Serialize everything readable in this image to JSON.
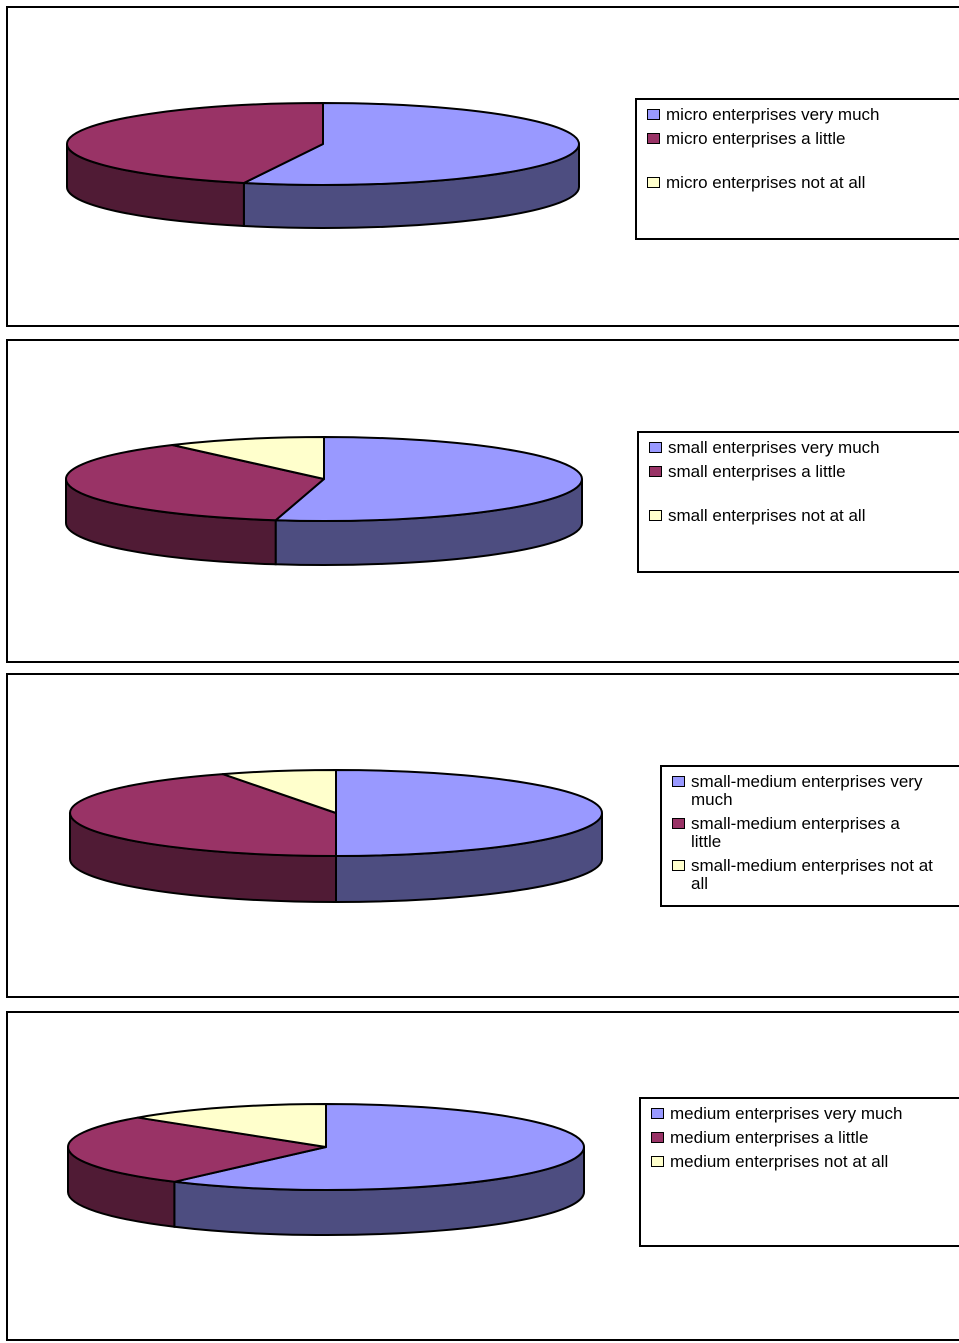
{
  "colors": {
    "very_much": "#9999ff",
    "a_little": "#993366",
    "not_at_all": "#ffffcc"
  },
  "chart_data": [
    {
      "type": "pie",
      "series": [
        {
          "name": "micro enterprises very much",
          "value": 55
        },
        {
          "name": "micro enterprises  a little",
          "value": 45
        },
        {
          "name": "micro enterprises not at all",
          "value": 0
        }
      ],
      "legend_position": "right"
    },
    {
      "type": "pie",
      "series": [
        {
          "name": "small enterprises very much",
          "value": 53
        },
        {
          "name": "small enterprises  a little",
          "value": 37
        },
        {
          "name": "small enterprises not at all",
          "value": 10
        }
      ],
      "legend_position": "right"
    },
    {
      "type": "pie",
      "series": [
        {
          "name": "small-medium enterprises very much",
          "value": 50
        },
        {
          "name": "small-medium enterprises  a little",
          "value": 43
        },
        {
          "name": "small-medium enterprises not at all",
          "value": 7
        }
      ],
      "legend_position": "right"
    },
    {
      "type": "pie",
      "series": [
        {
          "name": "medium enterprises very much",
          "value": 60
        },
        {
          "name": "medium enterprises  a little",
          "value": 27
        },
        {
          "name": "medium enterprises not at all",
          "value": 13
        }
      ],
      "legend_position": "right"
    }
  ]
}
